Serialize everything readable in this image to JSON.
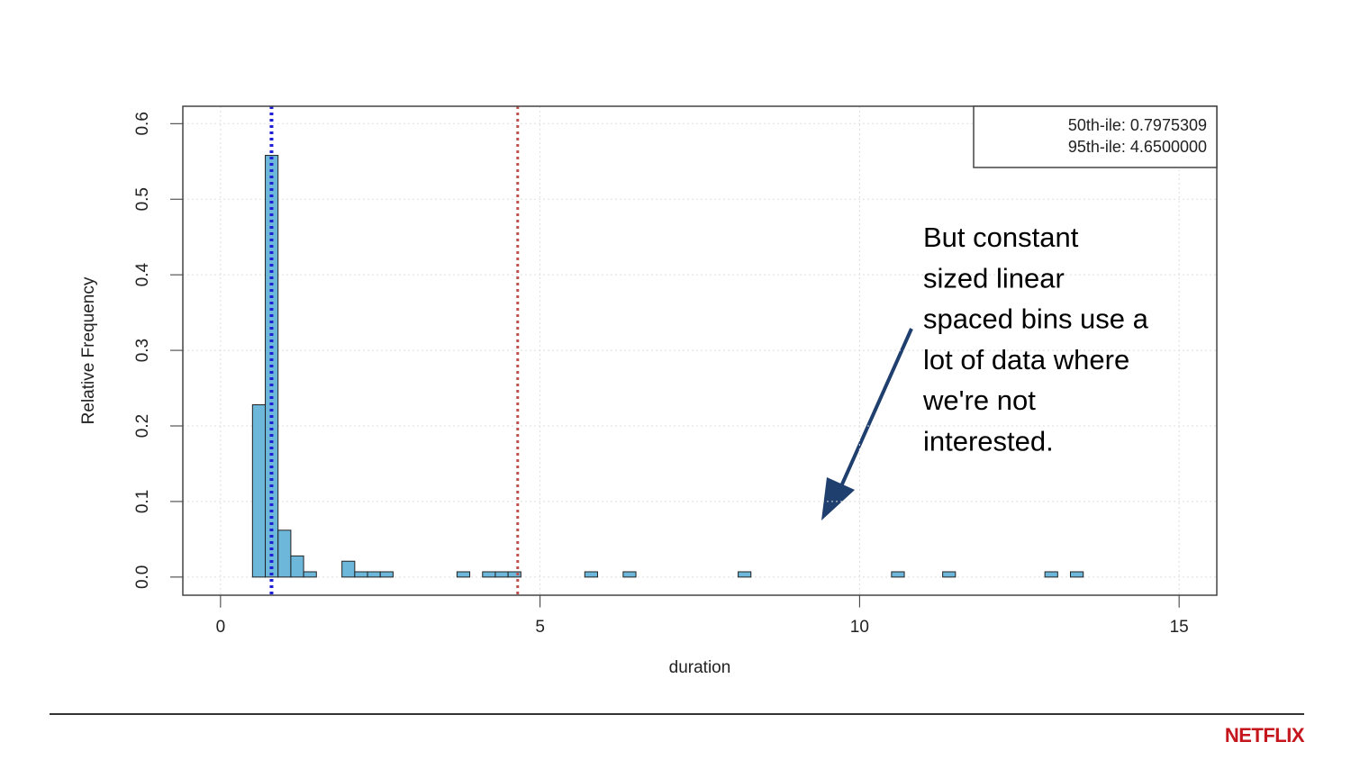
{
  "chart_data": {
    "type": "histogram",
    "x_label": "duration",
    "y_label": "Relative Frequency",
    "bins": [
      0.5,
      0.7,
      0.9,
      1.1,
      1.3,
      1.5,
      1.7,
      1.9,
      2.1,
      2.3,
      2.5,
      2.7,
      2.9,
      3.1,
      3.3,
      3.5,
      3.7,
      3.9,
      4.1,
      4.3,
      4.5,
      4.7,
      4.9,
      5.1,
      5.3,
      5.5,
      5.7,
      5.9,
      6.1,
      6.3,
      6.5,
      6.7,
      6.9,
      7.1,
      7.3,
      7.5,
      7.7,
      7.9,
      8.1,
      8.3,
      8.5,
      8.7,
      8.9,
      9.1,
      9.3,
      9.5,
      9.7,
      9.9,
      10.1,
      10.3,
      10.5,
      10.7,
      10.9,
      11.1,
      11.3,
      11.5,
      11.7,
      11.9,
      12.1,
      12.3,
      12.5,
      12.7,
      12.9,
      13.1,
      13.3,
      13.5
    ],
    "values": [
      0.228,
      0.558,
      0.062,
      0.028,
      0.007,
      0,
      0,
      0.021,
      0.007,
      0.007,
      0.007,
      0,
      0,
      0,
      0,
      0,
      0.007,
      0,
      0.007,
      0.007,
      0.007,
      0,
      0,
      0,
      0,
      0,
      0.007,
      0,
      0,
      0.007,
      0,
      0,
      0,
      0,
      0,
      0,
      0,
      0,
      0.007,
      0,
      0,
      0,
      0,
      0,
      0,
      0,
      0,
      0,
      0,
      0,
      0.007,
      0,
      0,
      0,
      0.007,
      0,
      0,
      0,
      0,
      0,
      0,
      0,
      0.007,
      0,
      0.007
    ],
    "color": "#6cb7da",
    "xlim": [
      -0.59,
      15.59
    ],
    "xticks": [
      0,
      5,
      10,
      15
    ],
    "ylim": [
      -0.024,
      0.623
    ],
    "yticks": [
      {
        "value": 0,
        "label": "0.0"
      },
      {
        "value": 0.1,
        "label": "0.1"
      },
      {
        "value": 0.2,
        "label": "0.2"
      },
      {
        "value": 0.3,
        "label": "0.3"
      },
      {
        "value": 0.4,
        "label": "0.4"
      },
      {
        "value": 0.5,
        "label": "0.5"
      },
      {
        "value": 0.6,
        "label": "0.6"
      }
    ],
    "grid": true,
    "vlines": [
      {
        "value": 0.7975309,
        "label": "50th-ile: 0.7975309",
        "color": "#1f1fd6"
      },
      {
        "value": 4.65,
        "label": "95th-ile: 4.6500000",
        "color": "#c0504d"
      }
    ],
    "legend_position": "top-right",
    "annotation": [
      "But constant",
      "sized linear",
      "spaced bins use a",
      "lot of data where",
      "we're not",
      "interested."
    ]
  },
  "footer": {
    "logo": "NETFLIX"
  }
}
